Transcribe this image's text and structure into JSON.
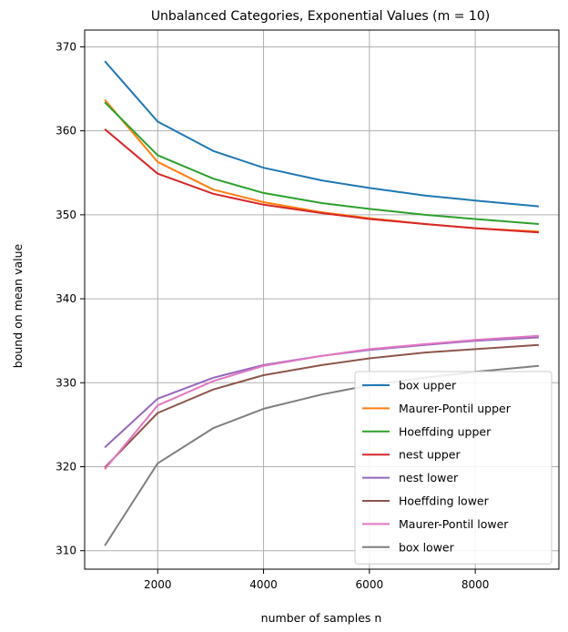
{
  "chart_data": {
    "type": "line",
    "title": "Unbalanced Categories, Exponential Values (m = 10)",
    "xlabel": "number of samples n",
    "ylabel": "bound on mean value",
    "xlim": [
      620,
      9580
    ],
    "ylim": [
      307.8,
      372
    ],
    "xticks": [
      2000,
      4000,
      6000,
      8000
    ],
    "yticks": [
      310,
      320,
      330,
      340,
      350,
      360,
      370
    ],
    "grid": true,
    "legend_position": "lower-right",
    "x": [
      1000,
      2000,
      3050,
      4000,
      5100,
      6000,
      7050,
      8000,
      9200
    ],
    "series": [
      {
        "name": "box upper",
        "color": "#1f77b4",
        "values": [
          368.3,
          361.1,
          357.6,
          355.6,
          354.1,
          353.2,
          352.3,
          351.7,
          351.0
        ]
      },
      {
        "name": "Maurer-Pontil upper",
        "color": "#ff7f0e",
        "values": [
          363.7,
          356.3,
          353.0,
          351.5,
          350.3,
          349.6,
          348.9,
          348.4,
          348.0
        ]
      },
      {
        "name": "Hoeffding upper",
        "color": "#2ca02c",
        "values": [
          363.4,
          357.1,
          354.3,
          352.6,
          351.4,
          350.7,
          350.0,
          349.5,
          348.9
        ]
      },
      {
        "name": "nest upper",
        "color": "#d62728",
        "values": [
          360.2,
          354.9,
          352.5,
          351.2,
          350.2,
          349.5,
          348.9,
          348.4,
          347.9
        ]
      },
      {
        "name": "nest lower",
        "color": "#9467bd",
        "values": [
          322.3,
          328.1,
          330.6,
          332.1,
          333.2,
          333.9,
          334.5,
          335.0,
          335.4
        ]
      },
      {
        "name": "Hoeffding lower",
        "color": "#8c564b",
        "values": [
          319.9,
          326.4,
          329.2,
          330.9,
          332.1,
          332.9,
          333.6,
          334.0,
          334.5
        ]
      },
      {
        "name": "Maurer-Pontil lower",
        "color": "#e377c2",
        "values": [
          319.7,
          327.3,
          330.2,
          332.0,
          333.2,
          334.0,
          334.6,
          335.1,
          335.6
        ]
      },
      {
        "name": "box lower",
        "color": "#7f7f7f",
        "values": [
          310.6,
          320.4,
          324.6,
          326.9,
          328.6,
          329.7,
          330.6,
          331.3,
          332.0
        ]
      }
    ]
  }
}
